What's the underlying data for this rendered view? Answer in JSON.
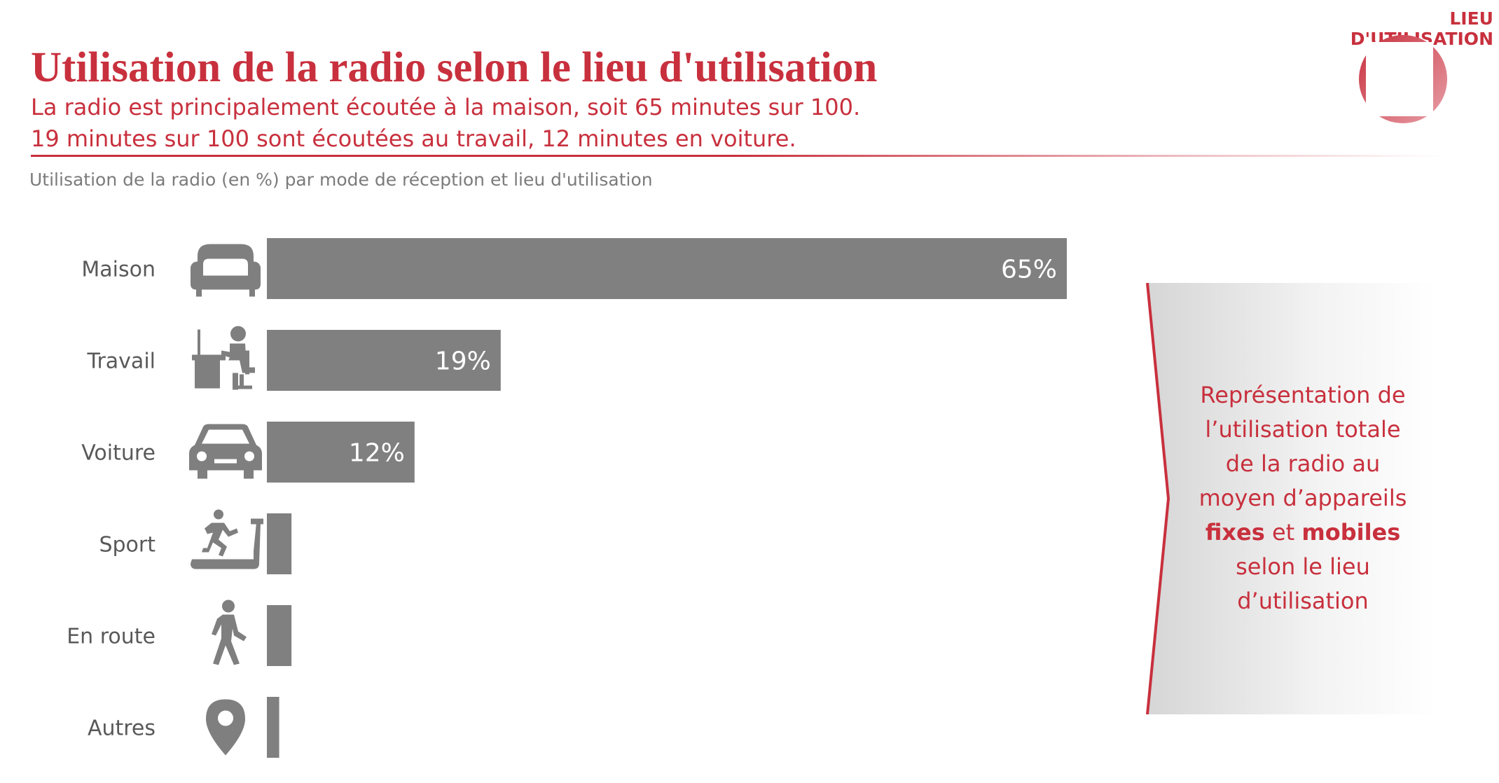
{
  "header": {
    "badge": "LIEU D'UTILISATION",
    "title": "Utilisation de la radio selon le lieu d'utilisation",
    "subtitle_line1": "La radio est principalement écoutée à la maison, soit 65 minutes sur 100.",
    "subtitle_line2": "19 minutes sur 100 sont écoutées au travail, 12 minutes en voiture.",
    "caption": "Utilisation de la radio (en %) par mode de réception et lieu d'utilisation"
  },
  "colors": {
    "accent": "#c8303d",
    "bar": "#808080",
    "bar_dark": "#6e6e6e",
    "icon": "#7f7f7f",
    "label": "#595959"
  },
  "chart_data": {
    "type": "bar",
    "orientation": "horizontal",
    "title": "",
    "xlabel": "",
    "ylabel": "",
    "xlim": [
      0,
      65
    ],
    "grid": false,
    "categories": [
      "Maison",
      "Travail",
      "Voiture",
      "Sport",
      "En route",
      "Autres"
    ],
    "icons": [
      "armchair-icon",
      "desk-worker-icon",
      "car-icon",
      "treadmill-icon",
      "walking-person-icon",
      "location-pin-icon"
    ],
    "values": [
      65,
      19,
      12,
      2,
      2,
      1
    ],
    "data_labels": [
      "65%",
      "19%",
      "12%",
      "",
      "",
      ""
    ]
  },
  "callout": {
    "line1": "Représentation de",
    "line2": "l’utilisation totale",
    "line3": "de la radio au",
    "line4": "moyen d’appareils",
    "fixes": "fixes",
    "et": "et",
    "mobiles": "mobiles",
    "line6": "selon le lieu",
    "line7": "d’utilisation"
  }
}
